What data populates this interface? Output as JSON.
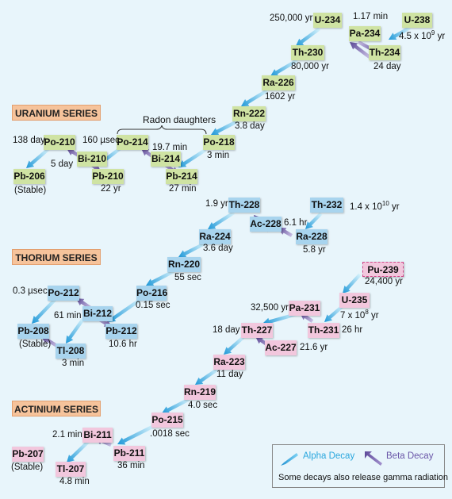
{
  "colors": {
    "uranium": "#cfe3a3",
    "thorium": "#a8d4ee",
    "actinium": "#f2c7dd",
    "alpha_arrow": "#2aa7de",
    "beta_arrow": "#7b68b0"
  },
  "series_titles": {
    "uranium": "URANIUM SERIES",
    "thorium": "THORIUM SERIES",
    "actinium": "ACTINIUM SERIES"
  },
  "radon_label": "Radon daughters",
  "nuclides": [
    {
      "id": "U-238",
      "series": "u"
    },
    {
      "id": "Pa-234",
      "series": "u"
    },
    {
      "id": "U-234",
      "series": "u"
    },
    {
      "id": "Th-234",
      "series": "u"
    },
    {
      "id": "Th-230",
      "series": "u"
    },
    {
      "id": "Ra-226",
      "series": "u"
    },
    {
      "id": "Rn-222",
      "series": "u"
    },
    {
      "id": "Po-218",
      "series": "u"
    },
    {
      "id": "Po-214",
      "series": "u"
    },
    {
      "id": "Bi-214",
      "series": "u"
    },
    {
      "id": "Pb-214",
      "series": "u"
    },
    {
      "id": "Po-210",
      "series": "u"
    },
    {
      "id": "Bi-210",
      "series": "u"
    },
    {
      "id": "Pb-210",
      "series": "u"
    },
    {
      "id": "Pb-206",
      "series": "u"
    },
    {
      "id": "Th-228",
      "series": "t"
    },
    {
      "id": "Ac-228",
      "series": "t"
    },
    {
      "id": "Th-232",
      "series": "t"
    },
    {
      "id": "Ra-228",
      "series": "t"
    },
    {
      "id": "Ra-224",
      "series": "t"
    },
    {
      "id": "Rn-220",
      "series": "t"
    },
    {
      "id": "Po-216",
      "series": "t"
    },
    {
      "id": "Po-212",
      "series": "t"
    },
    {
      "id": "Bi-212",
      "series": "t"
    },
    {
      "id": "Pb-212",
      "series": "t"
    },
    {
      "id": "Pb-208",
      "series": "t"
    },
    {
      "id": "Tl-208",
      "series": "t"
    },
    {
      "id": "Pu-239",
      "series": "a",
      "dashed": true
    },
    {
      "id": "U-235",
      "series": "a"
    },
    {
      "id": "Pa-231",
      "series": "a"
    },
    {
      "id": "Th-231",
      "series": "a"
    },
    {
      "id": "Th-227",
      "series": "a"
    },
    {
      "id": "Ac-227",
      "series": "a"
    },
    {
      "id": "Ra-223",
      "series": "a"
    },
    {
      "id": "Rn-219",
      "series": "a"
    },
    {
      "id": "Po-215",
      "series": "a"
    },
    {
      "id": "Bi-211",
      "series": "a"
    },
    {
      "id": "Pb-211",
      "series": "a"
    },
    {
      "id": "Pb-207",
      "series": "a"
    },
    {
      "id": "Tl-207",
      "series": "a"
    }
  ],
  "halflives": [
    "250,000 yr",
    "1.17 min",
    "4.5 x 10",
    "9",
    " yr",
    "24 day",
    "80,000 yr",
    "1602 yr",
    "3.8 day",
    "3 min",
    "160 µsec",
    "19.7 min",
    "27 min",
    "138 day",
    "5 day",
    "(Stable)",
    "22 yr",
    "1.9 yr",
    "6.1 hr",
    "1.4 x 10",
    "10",
    " yr",
    "5.8 yr",
    "3.6 day",
    "55 sec",
    "0.15 sec",
    "0.3 µsec",
    "61 min",
    "10.6 hr",
    "(Stable)",
    "3 min",
    "24,400 yr",
    "7 x 10",
    "8",
    " yr",
    "32,500 yr",
    "26 hr",
    "18 day",
    "21.6 yr",
    "11 day",
    "4.0 sec",
    ".0018 sec",
    "2.1 min",
    "36 min",
    "(Stable)",
    "4.8 min"
  ],
  "legend": {
    "alpha": "Alpha Decay",
    "beta": "Beta Decay",
    "note": "Some decays also release gamma radiation"
  }
}
